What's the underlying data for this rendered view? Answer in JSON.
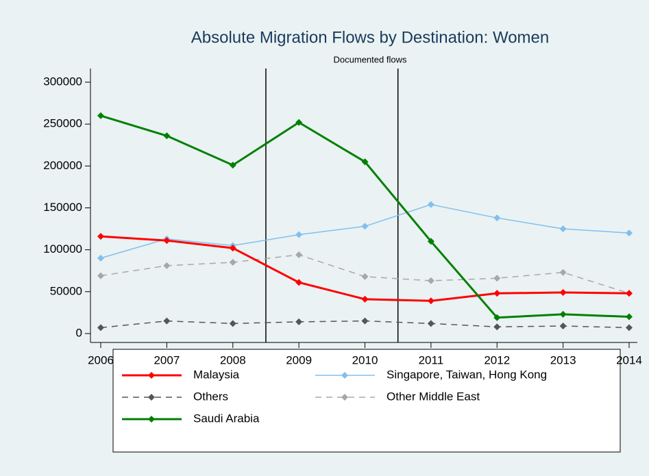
{
  "chart_data": {
    "type": "line",
    "title": "Absolute Migration Flows by Destination: Women",
    "subtitle": "Documented flows",
    "x": [
      2006,
      2007,
      2008,
      2009,
      2010,
      2011,
      2012,
      2013,
      2014
    ],
    "xlim": [
      2006,
      2014
    ],
    "xticks": [
      2006,
      2007,
      2008,
      2009,
      2010,
      2011,
      2012,
      2013,
      2014
    ],
    "ylim": [
      0,
      300000
    ],
    "yticks": [
      0,
      50000,
      100000,
      150000,
      200000,
      250000,
      300000
    ],
    "xlines": [
      2008.5,
      2010.5
    ],
    "series": [
      {
        "name": "Malaysia",
        "color": "#ff0000",
        "dashed": false,
        "values": [
          116000,
          111000,
          102000,
          61000,
          41000,
          39000,
          48000,
          49000,
          48000
        ]
      },
      {
        "name": "Singapore, Taiwan, Hong Kong",
        "color": "#80c0ee",
        "dashed": false,
        "values": [
          90000,
          113000,
          105000,
          118000,
          128000,
          154000,
          138000,
          125000,
          120000
        ]
      },
      {
        "name": "Others",
        "color": "#555555",
        "dashed": true,
        "values": [
          7000,
          15000,
          12000,
          14000,
          15000,
          12000,
          8000,
          9000,
          7000
        ]
      },
      {
        "name": "Other Middle East",
        "color": "#a8a8a8",
        "dashed": true,
        "values": [
          69000,
          81000,
          85000,
          94000,
          68000,
          63000,
          66000,
          73000,
          48000
        ]
      },
      {
        "name": "Saudi Arabia",
        "color": "#008000",
        "dashed": false,
        "values": [
          260000,
          236000,
          201000,
          252000,
          205000,
          110000,
          19000,
          23000,
          20000
        ]
      }
    ]
  }
}
